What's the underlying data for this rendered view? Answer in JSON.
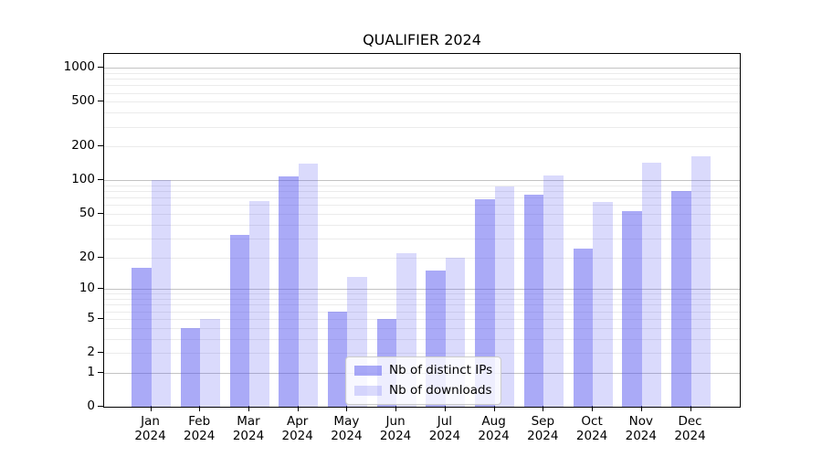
{
  "chart_data": {
    "type": "bar",
    "title": "QUALIFIER 2024",
    "categories": [
      "Jan 2024",
      "Feb 2024",
      "Mar 2024",
      "Apr 2024",
      "May 2024",
      "Jun 2024",
      "Jul 2024",
      "Aug 2024",
      "Sep 2024",
      "Oct 2024",
      "Nov 2024",
      "Dec 2024"
    ],
    "series": [
      {
        "name": "Nb of distinct IPs",
        "color": "rgba(85,85,240,0.5)",
        "values": [
          16,
          4,
          32,
          108,
          6,
          5,
          15,
          68,
          74,
          24,
          53,
          81
        ]
      },
      {
        "name": "Nb of downloads",
        "color": "rgba(85,85,240,0.22)",
        "values": [
          100,
          5,
          65,
          140,
          13,
          22,
          20,
          88,
          110,
          64,
          145,
          165
        ]
      }
    ],
    "xlabel": "",
    "ylabel": "",
    "yscale": "log1p",
    "ylim": [
      0,
      1300
    ],
    "ytick_labels": [
      "0",
      "1",
      "2",
      "5",
      "10",
      "20",
      "50",
      "100",
      "200",
      "500",
      "1000"
    ],
    "grid": true,
    "major_gridlines": [
      1,
      10,
      100,
      1000
    ],
    "minor_gridlines": [
      2,
      3,
      4,
      5,
      6,
      7,
      8,
      9,
      20,
      30,
      40,
      50,
      60,
      70,
      80,
      90,
      200,
      300,
      400,
      500,
      600,
      700,
      800,
      900
    ],
    "legend": {
      "position": "lower center",
      "entries": [
        "Nb of distinct IPs",
        "Nb of downloads"
      ]
    }
  },
  "colors": {
    "background": "#ffffff",
    "bar_base": "#5555f0",
    "grid_major": "#c3c3c3",
    "grid_minor": "#ebebeb",
    "spine": "#000000",
    "legend_bg": "rgba(255,255,255,0.8)",
    "legend_border": "#cccccc",
    "text": "#000000"
  }
}
